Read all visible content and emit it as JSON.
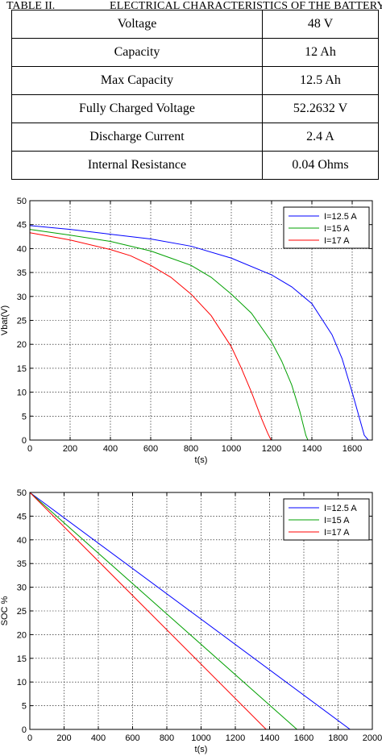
{
  "table": {
    "caption_number": "TABLE II.",
    "caption_title": "ELECTRICAL CHARACTERISTICS OF THE BATTERY.",
    "rows": [
      [
        "Voltage",
        "48 V"
      ],
      [
        "Capacity",
        "12 Ah"
      ],
      [
        "Max Capacity",
        "12.5 Ah"
      ],
      [
        "Fully Charged Voltage",
        "52.2632 V"
      ],
      [
        "Discharge Current",
        "2.4 A"
      ],
      [
        "Internal Resistance",
        "0.04 Ohms"
      ]
    ]
  },
  "chart_data": [
    {
      "type": "line",
      "xlabel": "t(s)",
      "ylabel": "Vbat(V)",
      "xlim": [
        0,
        1700
      ],
      "ylim": [
        0,
        50
      ],
      "xticks": [
        0,
        200,
        400,
        600,
        800,
        1000,
        1200,
        1400,
        1600
      ],
      "yticks": [
        0,
        5,
        10,
        15,
        20,
        25,
        30,
        35,
        40,
        45,
        50
      ],
      "grid": true,
      "legend_position": "top-right",
      "series": [
        {
          "name": "I=12.5 A",
          "color": "#0000ff",
          "x": [
            0,
            200,
            400,
            600,
            800,
            1000,
            1200,
            1300,
            1400,
            1500,
            1550,
            1600,
            1640,
            1660,
            1680,
            1690,
            1700
          ],
          "y": [
            44.8,
            44.0,
            43.0,
            42.0,
            40.5,
            38.0,
            34.5,
            32.0,
            28.5,
            22.0,
            17.0,
            10.0,
            4.0,
            1.0,
            0,
            0,
            0
          ]
        },
        {
          "name": "I=15 A",
          "color": "#00a000",
          "x": [
            0,
            200,
            400,
            600,
            700,
            800,
            900,
            1000,
            1100,
            1200,
            1250,
            1300,
            1340,
            1370,
            1380,
            1400,
            1700
          ],
          "y": [
            44.0,
            42.8,
            41.5,
            39.5,
            38.0,
            36.5,
            34.0,
            30.5,
            26.5,
            20.5,
            16.5,
            11.5,
            6.0,
            1.0,
            0,
            0,
            0
          ]
        },
        {
          "name": "I=17 A",
          "color": "#ff0000",
          "x": [
            0,
            200,
            400,
            500,
            600,
            700,
            800,
            900,
            1000,
            1050,
            1100,
            1150,
            1180,
            1195,
            1200,
            1700
          ],
          "y": [
            43.3,
            41.8,
            39.8,
            38.5,
            36.5,
            34.0,
            30.5,
            26.0,
            19.5,
            15.0,
            10.0,
            4.5,
            1.5,
            0.2,
            0,
            0
          ]
        }
      ]
    },
    {
      "type": "line",
      "xlabel": "t(s)",
      "ylabel": "SOC %",
      "xlim": [
        0,
        2000
      ],
      "ylim": [
        0,
        50
      ],
      "xticks": [
        0,
        200,
        400,
        600,
        800,
        1000,
        1200,
        1400,
        1600,
        1800,
        2000
      ],
      "yticks": [
        0,
        5,
        10,
        15,
        20,
        25,
        30,
        35,
        40,
        45,
        50
      ],
      "grid": true,
      "legend_position": "top-right",
      "series": [
        {
          "name": "I=12.5 A",
          "color": "#0000ff",
          "x": [
            0,
            1870,
            2000
          ],
          "y": [
            50,
            0,
            0
          ]
        },
        {
          "name": "I=15 A",
          "color": "#00a000",
          "x": [
            0,
            1560,
            2000
          ],
          "y": [
            50,
            0,
            0
          ]
        },
        {
          "name": "I=17 A",
          "color": "#ff0000",
          "x": [
            0,
            1380,
            2000
          ],
          "y": [
            50,
            0,
            0
          ]
        }
      ]
    }
  ]
}
